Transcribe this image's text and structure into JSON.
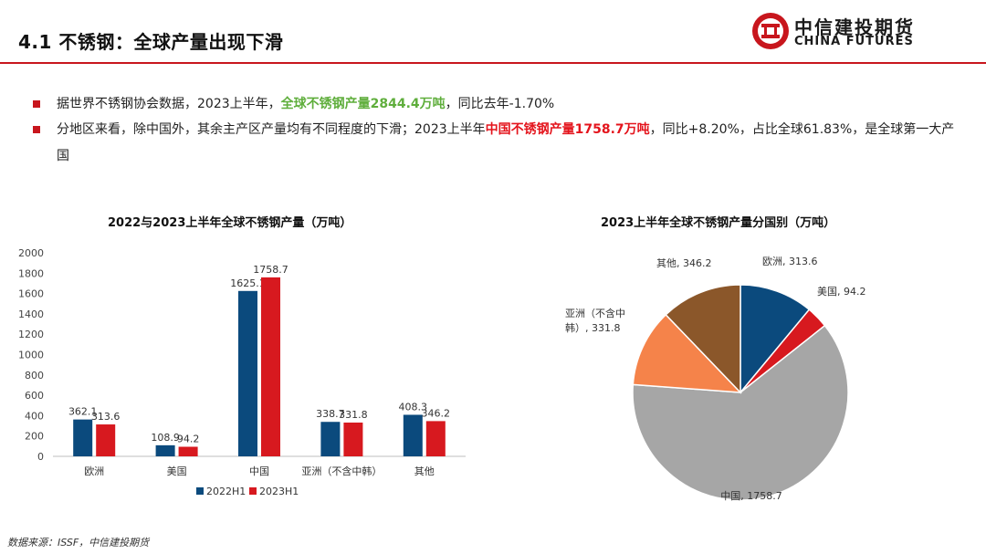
{
  "header": {
    "title": "4.1 不锈钢：全球产量出现下滑",
    "logo_cn": "中信建投期货",
    "logo_en": "CHINA FUTURES"
  },
  "bullets": [
    {
      "pre": "据世界不锈钢协会数据，2023上半年，",
      "highlight": "全球不锈钢产量2844.4万吨",
      "post": "，同比去年-1.70%"
    },
    {
      "pre": "分地区来看，除中国外，其余主产区产量均有不同程度的下滑；2023上半年",
      "highlight": "中国不锈钢产量1758.7万吨",
      "post": "，同比+8.20%，占比全球61.83%，是全球第一大产国"
    }
  ],
  "chart_data": [
    {
      "type": "bar",
      "title": "2022与2023上半年全球不锈钢产量（万吨）",
      "categories": [
        "欧洲",
        "美国",
        "中国",
        "亚洲（不含中韩）",
        "其他"
      ],
      "series": [
        {
          "name": "2022H1",
          "color": "#0b4a7d",
          "values": [
            362.1,
            108.9,
            1625.1,
            338.7,
            408.3
          ]
        },
        {
          "name": "2023H1",
          "color": "#d7191f",
          "values": [
            313.6,
            94.2,
            1758.7,
            331.8,
            346.2
          ]
        }
      ],
      "y_ticks": [
        0,
        200,
        400,
        600,
        800,
        1000,
        1200,
        1400,
        1600,
        1800,
        2000
      ],
      "ylim": [
        0,
        2000
      ],
      "legend": "bottom"
    },
    {
      "type": "pie",
      "title": "2023上半年全球不锈钢产量分国别（万吨）",
      "slices": [
        {
          "label": "欧洲",
          "value": 313.6,
          "text": "欧洲, 313.6",
          "color": "#0b4a7d"
        },
        {
          "label": "美国",
          "value": 94.2,
          "text": "美国, 94.2",
          "color": "#d7191f"
        },
        {
          "label": "中国",
          "value": 1758.7,
          "text": "中国, 1758.7",
          "color": "#a6a6a6"
        },
        {
          "label": "亚洲（不含中韩）",
          "value": 331.8,
          "text": "亚洲（不含中韩）, 331.8",
          "color": "#f5834a"
        },
        {
          "label": "其他",
          "value": 346.2,
          "text": "其他, 346.2",
          "color": "#8b572a"
        }
      ]
    }
  ],
  "footer": {
    "source": "数据来源：ISSF，中信建投期货"
  }
}
